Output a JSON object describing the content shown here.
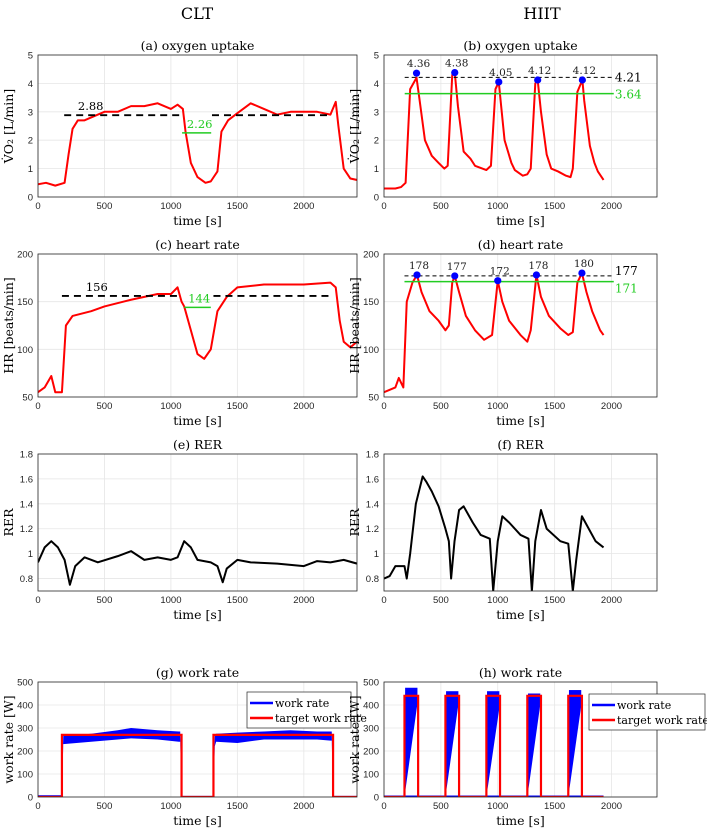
{
  "headers": {
    "left": "CLT",
    "right": "HIIT"
  },
  "colors": {
    "data": "#ff0000",
    "mean": "#000000",
    "low": "#22cc22",
    "peak": "#0000ff",
    "work": "#0000ff",
    "target": "#ff0000"
  },
  "chart_data": [
    {
      "id": "a",
      "type": "line",
      "title": "(a) oxygen uptake",
      "xlabel": "time [s]",
      "ylabel": "V̇O₂ [L/min]",
      "xlim": [
        0,
        2400
      ],
      "ylim": [
        0,
        5
      ],
      "xticks": [
        "0",
        "500",
        "1000",
        "1500",
        "2000"
      ],
      "yticks": [
        "0",
        "1",
        "2",
        "3",
        "4",
        "5"
      ],
      "grid": true,
      "series": [
        {
          "name": "VO2",
          "color": "#ff0000",
          "x": [
            0,
            60,
            130,
            200,
            230,
            260,
            300,
            350,
            400,
            500,
            600,
            700,
            800,
            900,
            1000,
            1050,
            1090,
            1110,
            1150,
            1200,
            1260,
            1300,
            1350,
            1380,
            1430,
            1500,
            1600,
            1700,
            1800,
            1900,
            2000,
            2100,
            2200,
            2240,
            2260,
            2300,
            2350,
            2400
          ],
          "y": [
            0.45,
            0.5,
            0.4,
            0.5,
            1.5,
            2.4,
            2.7,
            2.7,
            2.8,
            3.0,
            3.0,
            3.2,
            3.2,
            3.3,
            3.1,
            3.25,
            3.1,
            2.3,
            1.2,
            0.7,
            0.5,
            0.55,
            0.9,
            2.3,
            2.7,
            2.95,
            3.3,
            3.1,
            2.9,
            3.0,
            3.0,
            3.0,
            2.9,
            3.35,
            2.5,
            1.0,
            0.65,
            0.6
          ]
        }
      ],
      "hlines": [
        {
          "kind": "mean",
          "value": 2.88,
          "label": "2.88",
          "segments": [
            [
              197,
              1078
            ],
            [
              1309,
              2176
            ]
          ],
          "label_x": 300
        },
        {
          "kind": "low",
          "value": 2.26,
          "label": "2.26",
          "segments": [
            [
              1084,
              1303
            ]
          ],
          "label_x": 1120
        }
      ]
    },
    {
      "id": "b",
      "type": "line",
      "title": "(b) oxygen uptake",
      "xlabel": "time [s]",
      "ylabel": "V̇O₂ [L/min]",
      "xlim": [
        0,
        2400
      ],
      "ylim": [
        0,
        5
      ],
      "xticks": [
        "0",
        "500",
        "1000",
        "1500",
        "2000"
      ],
      "yticks": [
        "0",
        "1",
        "2",
        "3",
        "4",
        "5"
      ],
      "grid": true,
      "series": [
        {
          "name": "VO2",
          "color": "#ff0000",
          "x": [
            0,
            100,
            150,
            190,
            230,
            286,
            310,
            360,
            420,
            480,
            530,
            560,
            600,
            622,
            650,
            700,
            760,
            800,
            900,
            940,
            980,
            1009,
            1030,
            1060,
            1120,
            1150,
            1220,
            1260,
            1290,
            1330,
            1351,
            1380,
            1430,
            1470,
            1530,
            1600,
            1640,
            1660,
            1700,
            1744,
            1760,
            1810,
            1850,
            1880,
            1930
          ],
          "y": [
            0.3,
            0.3,
            0.35,
            0.5,
            3.8,
            4.2,
            3.5,
            2.0,
            1.45,
            1.2,
            1.0,
            1.1,
            4.3,
            4.38,
            3.2,
            1.6,
            1.35,
            1.1,
            0.95,
            1.1,
            3.8,
            4.05,
            3.2,
            2.0,
            1.2,
            0.95,
            0.75,
            0.8,
            1.0,
            4.0,
            4.12,
            3.0,
            1.5,
            1.0,
            0.9,
            0.75,
            0.7,
            1.0,
            3.7,
            4.12,
            3.4,
            1.8,
            1.2,
            0.9,
            0.6
          ]
        }
      ],
      "peaks": {
        "x": [
          286,
          622,
          1009,
          1351,
          1744
        ],
        "y": [
          4.36,
          4.38,
          4.05,
          4.12,
          4.12
        ],
        "labels": [
          "4.36",
          "4.38",
          "4.05",
          "4.12",
          "4.12"
        ]
      },
      "hlines": [
        {
          "kind": "mean",
          "value": 4.21,
          "label": "4.21",
          "segments": [
            [
              182,
              2012
            ]
          ],
          "label_x": 2030
        },
        {
          "kind": "low",
          "value": 3.64,
          "label": "3.64",
          "segments": [
            [
              182,
              2020
            ]
          ],
          "label_x": 2030
        }
      ]
    },
    {
      "id": "c",
      "type": "line",
      "title": "(c) heart rate",
      "xlabel": "time [s]",
      "ylabel": "HR [beats/min]",
      "xlim": [
        0,
        2400
      ],
      "ylim": [
        50,
        200
      ],
      "xticks": [
        "0",
        "500",
        "1000",
        "1500",
        "2000"
      ],
      "yticks": [
        "50",
        "100",
        "150",
        "200"
      ],
      "grid": true,
      "series": [
        {
          "name": "HR",
          "color": "#ff0000",
          "x": [
            0,
            50,
            100,
            130,
            180,
            210,
            260,
            400,
            500,
            700,
            900,
            1000,
            1050,
            1080,
            1100,
            1150,
            1200,
            1250,
            1300,
            1350,
            1420,
            1500,
            1700,
            2000,
            2200,
            2240,
            2270,
            2300,
            2350,
            2400
          ],
          "y": [
            55,
            60,
            72,
            55,
            55,
            125,
            135,
            140,
            145,
            152,
            158,
            158,
            165,
            150,
            145,
            120,
            95,
            90,
            100,
            140,
            155,
            165,
            168,
            168,
            170,
            165,
            130,
            108,
            102,
            108
          ]
        }
      ],
      "hlines": [
        {
          "kind": "mean",
          "value": 156,
          "label": "156",
          "segments": [
            [
              180,
              1080
            ],
            [
              1320,
              2200
            ]
          ],
          "label_x": 360
        },
        {
          "kind": "low",
          "value": 144,
          "label": "144",
          "segments": [
            [
              1100,
              1300
            ]
          ],
          "label_x": 1130
        }
      ]
    },
    {
      "id": "d",
      "type": "line",
      "title": "(d) heart rate",
      "xlabel": "time [s]",
      "ylabel": "HR [beats/min]",
      "xlim": [
        0,
        2400
      ],
      "ylim": [
        50,
        200
      ],
      "xticks": [
        "0",
        "500",
        "1000",
        "1500",
        "2000"
      ],
      "yticks": [
        "50",
        "100",
        "150",
        "200"
      ],
      "grid": true,
      "series": [
        {
          "name": "HR",
          "color": "#ff0000",
          "x": [
            0,
            100,
            130,
            170,
            200,
            250,
            290,
            330,
            400,
            480,
            540,
            570,
            600,
            622,
            660,
            720,
            800,
            880,
            950,
            1000,
            1040,
            1100,
            1200,
            1260,
            1290,
            1340,
            1380,
            1450,
            1550,
            1620,
            1660,
            1700,
            1740,
            1780,
            1830,
            1900,
            1930
          ],
          "y": [
            55,
            60,
            70,
            60,
            150,
            170,
            178,
            160,
            140,
            130,
            120,
            125,
            170,
            177,
            160,
            135,
            120,
            110,
            115,
            172,
            150,
            130,
            115,
            108,
            120,
            178,
            155,
            135,
            122,
            115,
            118,
            170,
            180,
            160,
            140,
            120,
            115
          ]
        }
      ],
      "peaks": {
        "x": [
          290,
          622,
          1000,
          1340,
          1740
        ],
        "y": [
          178,
          177,
          172,
          178,
          180
        ],
        "labels": [
          "178",
          "177",
          "172",
          "178",
          "180"
        ]
      },
      "hlines": [
        {
          "kind": "mean",
          "value": 177,
          "label": "177",
          "segments": [
            [
              180,
              2012
            ]
          ],
          "label_x": 2030
        },
        {
          "kind": "low",
          "value": 171,
          "label": "171",
          "segments": [
            [
              180,
              2020
            ]
          ],
          "label_x": 2030
        }
      ]
    },
    {
      "id": "e",
      "type": "line",
      "title": "(e) RER",
      "xlabel": "time [s]",
      "ylabel": "RER",
      "xlim": [
        0,
        2400
      ],
      "ylim": [
        0.7,
        1.8
      ],
      "xticks": [
        "0",
        "500",
        "1000",
        "1500",
        "2000"
      ],
      "yticks": [
        "0.8",
        "1",
        "1.2",
        "1.4",
        "1.6",
        "1.8"
      ],
      "grid": true,
      "series": [
        {
          "name": "RER",
          "color": "#000000",
          "x": [
            0,
            50,
            100,
            150,
            200,
            240,
            280,
            350,
            450,
            600,
            700,
            800,
            900,
            1000,
            1050,
            1100,
            1150,
            1200,
            1300,
            1350,
            1390,
            1420,
            1500,
            1600,
            1800,
            2000,
            2100,
            2200,
            2300,
            2400
          ],
          "y": [
            0.93,
            1.05,
            1.1,
            1.05,
            0.95,
            0.75,
            0.9,
            0.97,
            0.93,
            0.98,
            1.02,
            0.95,
            0.97,
            0.95,
            0.97,
            1.1,
            1.05,
            0.95,
            0.93,
            0.9,
            0.77,
            0.88,
            0.95,
            0.93,
            0.92,
            0.9,
            0.94,
            0.93,
            0.95,
            0.92
          ]
        }
      ]
    },
    {
      "id": "f",
      "type": "line",
      "title": "(f) RER",
      "xlabel": "time [s]",
      "ylabel": "RER",
      "xlim": [
        0,
        2400
      ],
      "ylim": [
        0.7,
        1.8
      ],
      "xticks": [
        "0",
        "500",
        "1000",
        "1500",
        "2000"
      ],
      "yticks": [
        "0.8",
        "1",
        "1.2",
        "1.4",
        "1.6",
        "1.8"
      ],
      "grid": true,
      "series": [
        {
          "name": "RER",
          "color": "#000000",
          "x": [
            0,
            50,
            100,
            180,
            200,
            230,
            280,
            340,
            370,
            420,
            480,
            540,
            570,
            590,
            620,
            660,
            700,
            780,
            850,
            930,
            960,
            1000,
            1040,
            1100,
            1200,
            1270,
            1300,
            1330,
            1380,
            1430,
            1550,
            1620,
            1660,
            1690,
            1740,
            1800,
            1860,
            1930
          ],
          "y": [
            0.8,
            0.82,
            0.9,
            0.9,
            0.8,
            1.0,
            1.4,
            1.62,
            1.58,
            1.5,
            1.38,
            1.2,
            1.1,
            0.8,
            1.1,
            1.35,
            1.38,
            1.25,
            1.15,
            1.12,
            0.7,
            1.1,
            1.3,
            1.25,
            1.15,
            1.12,
            0.7,
            1.1,
            1.35,
            1.2,
            1.1,
            1.08,
            0.7,
            0.95,
            1.3,
            1.2,
            1.1,
            1.05
          ]
        }
      ]
    },
    {
      "id": "g",
      "type": "line",
      "title": "(g) work rate",
      "xlabel": "time [s]",
      "ylabel": "work rate [W]",
      "xlim": [
        0,
        2400
      ],
      "ylim": [
        0,
        500
      ],
      "xticks": [
        "0",
        "500",
        "1000",
        "1500",
        "2000"
      ],
      "yticks": [
        "0",
        "100",
        "200",
        "300",
        "400",
        "500"
      ],
      "grid": true,
      "legend": {
        "placement": "top-right-inside",
        "entries": [
          "work rate",
          "target work rate"
        ]
      },
      "band": {
        "name": "work rate",
        "x": [
          0,
          170,
          180,
          190,
          400,
          600,
          700,
          900,
          1060,
          1070,
          1080,
          1320,
          1330,
          1340,
          1500,
          1700,
          1900,
          2100,
          2200,
          2210,
          2220,
          2400
        ],
        "low": [
          5,
          5,
          0,
          230,
          240,
          250,
          255,
          250,
          240,
          240,
          0,
          0,
          220,
          240,
          235,
          250,
          250,
          250,
          245,
          245,
          0,
          0
        ],
        "high": [
          8,
          8,
          10,
          265,
          275,
          290,
          300,
          290,
          285,
          285,
          5,
          5,
          270,
          275,
          280,
          285,
          290,
          285,
          285,
          285,
          5,
          5
        ]
      },
      "target": {
        "name": "target work rate",
        "intervals": [
          [
            180,
            1080
          ],
          [
            1320,
            2220
          ]
        ],
        "level": 270,
        "xmax": 2400
      }
    },
    {
      "id": "h",
      "type": "line",
      "title": "(h) work rate",
      "xlabel": "time [s]",
      "ylabel": "work rate [W]",
      "xlim": [
        0,
        2400
      ],
      "ylim": [
        0,
        500
      ],
      "xticks": [
        "0",
        "500",
        "1000",
        "1500",
        "2000"
      ],
      "yticks": [
        "0",
        "100",
        "200",
        "300",
        "400",
        "500"
      ],
      "grid": true,
      "legend": {
        "placement": "right-outside",
        "entries": [
          "work rate",
          "target work rate"
        ]
      },
      "band": {
        "name": "work rate",
        "intervals": [
          [
            180,
            300,
            400,
            475
          ],
          [
            540,
            660,
            395,
            460
          ],
          [
            900,
            1020,
            380,
            460
          ],
          [
            1260,
            1380,
            395,
            450
          ],
          [
            1620,
            1740,
            390,
            465
          ]
        ]
      },
      "target": {
        "name": "target work rate",
        "intervals": [
          [
            180,
            300
          ],
          [
            540,
            660
          ],
          [
            900,
            1020
          ],
          [
            1260,
            1380
          ],
          [
            1620,
            1740
          ]
        ],
        "level": 440,
        "xmax": 1930
      }
    }
  ]
}
